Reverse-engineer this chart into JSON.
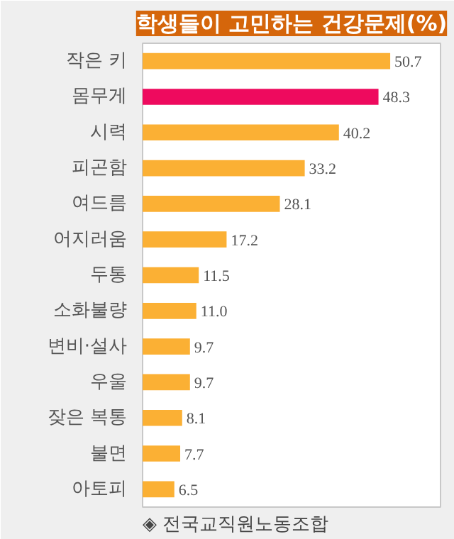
{
  "chart_data": {
    "type": "bar",
    "orientation": "horizontal",
    "title": "학생들이 고민하는 건강문제(%)",
    "categories": [
      "작은 키",
      "몸무게",
      "시력",
      "피곤함",
      "여드름",
      "어지러움",
      "두통",
      "소화불량",
      "변비·설사",
      "우울",
      "잦은 복통",
      "불면",
      "아토피"
    ],
    "values": [
      50.7,
      48.3,
      40.2,
      33.2,
      28.1,
      17.2,
      11.5,
      11.0,
      9.7,
      9.7,
      8.1,
      7.7,
      6.5
    ],
    "value_labels": [
      "50.7",
      "48.3",
      "40.2",
      "33.2",
      "28.1",
      "17.2",
      "11.5",
      "11.0",
      "9.7",
      "9.7",
      "8.1",
      "7.7",
      "6.5"
    ],
    "colors": [
      "#fbb034",
      "#ee0a5e",
      "#fbb034",
      "#fbb034",
      "#fbb034",
      "#fbb034",
      "#fbb034",
      "#fbb034",
      "#fbb034",
      "#fbb034",
      "#fbb034",
      "#fbb034",
      "#fbb034"
    ],
    "xlim": [
      0,
      61
    ],
    "tick_labels": "y",
    "grid": false,
    "annotations": [
      "◈ 전국교직원노동조합"
    ]
  }
}
